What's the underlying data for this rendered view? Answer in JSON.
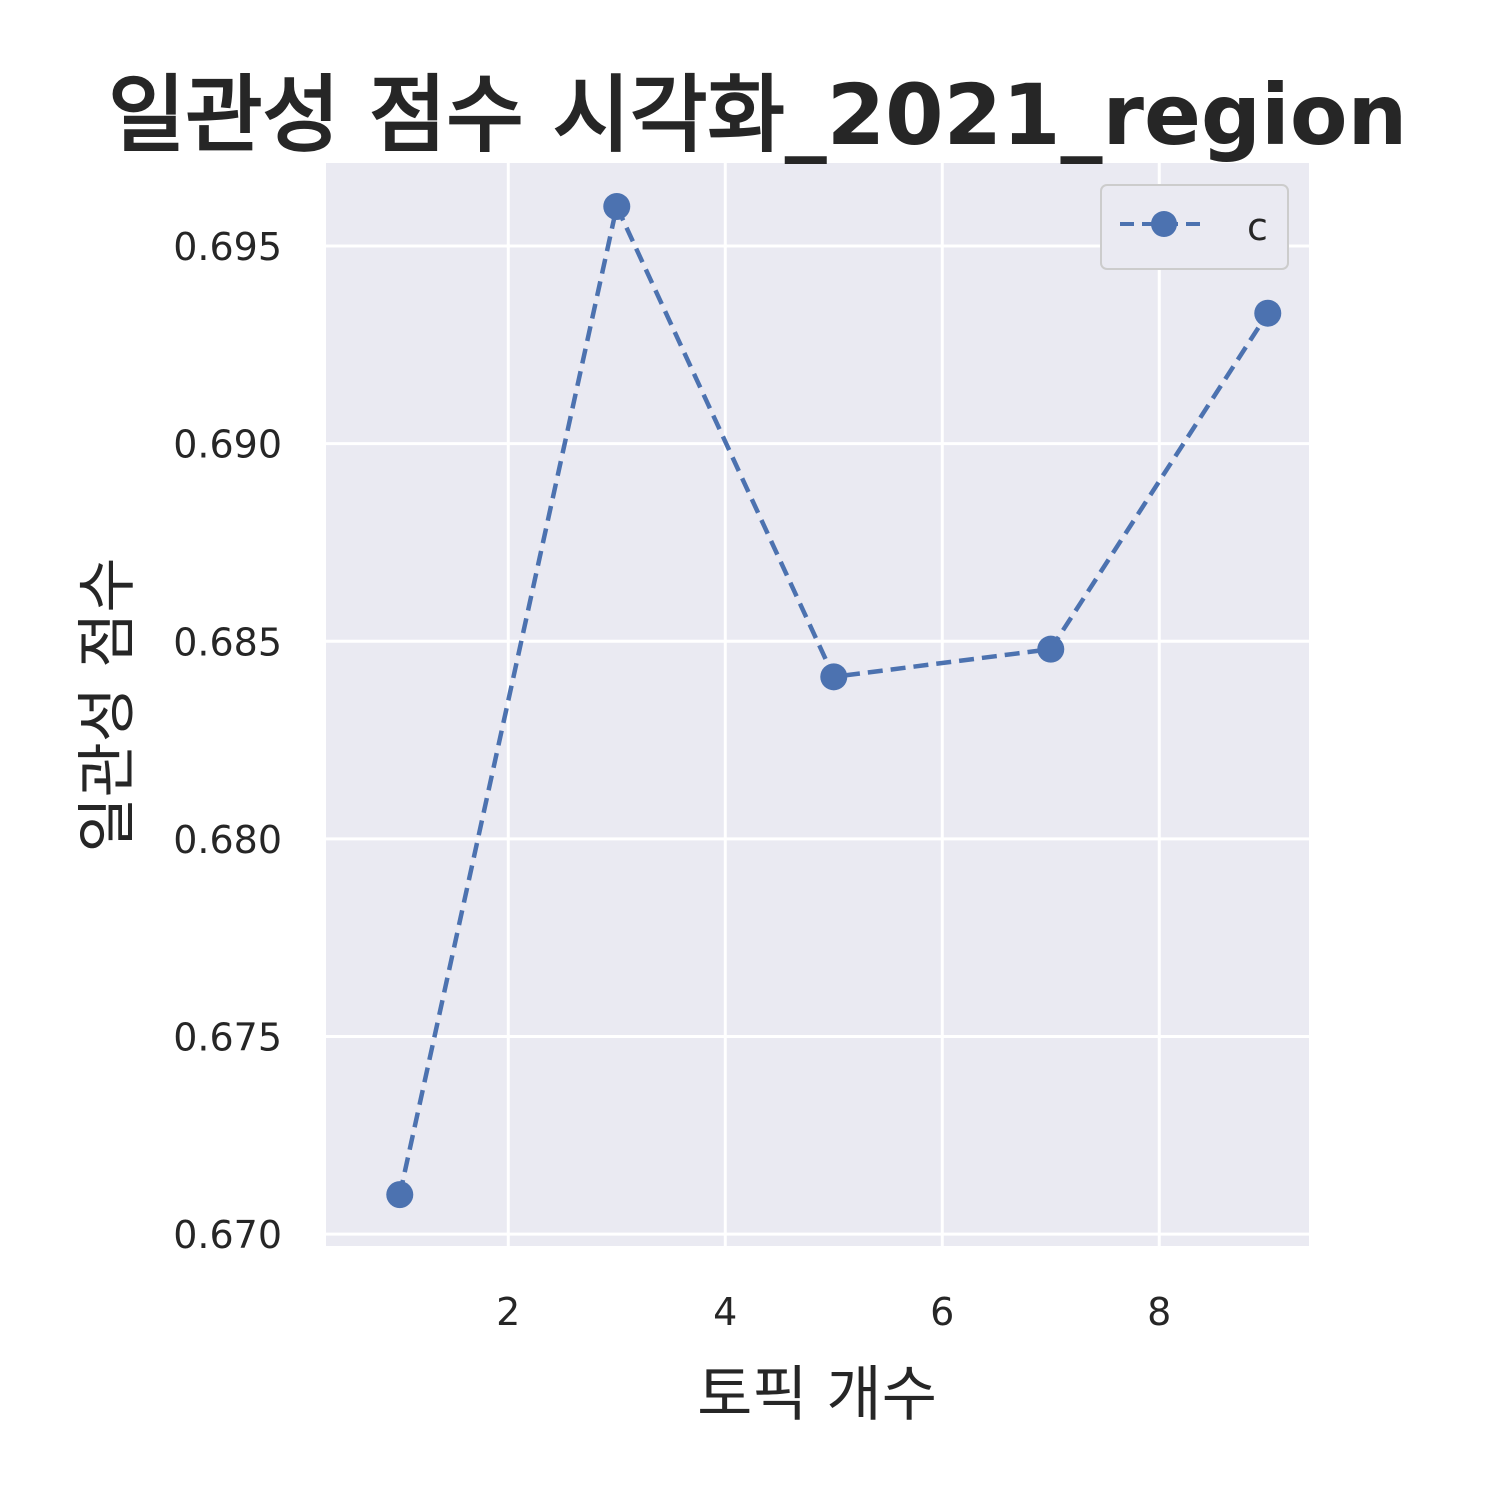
{
  "chart_data": {
    "type": "line",
    "title": "일관성 점수 시각화_2021_region",
    "xlabel": "토픽 개수",
    "ylabel": "일관성 점수",
    "x": [
      1,
      3,
      5,
      7,
      9
    ],
    "series": [
      {
        "name": "c",
        "values": [
          0.671,
          0.696,
          0.6841,
          0.6848,
          0.6933
        ],
        "color": "#4c72b0",
        "line_style": "dashed",
        "marker": "circle"
      }
    ],
    "xlim": [
      0.32,
      9.38
    ],
    "ylim": [
      0.6697,
      0.6971
    ],
    "xticks": [
      2,
      4,
      6,
      8
    ],
    "yticks": [
      0.67,
      0.675,
      0.68,
      0.685,
      0.69,
      0.695
    ],
    "yticklabels": [
      "0.670",
      "0.675",
      "0.680",
      "0.685",
      "0.690",
      "0.695"
    ],
    "grid": true,
    "legend_position": "upper-right",
    "background_color": "#eaeaf2",
    "grid_color": "#ffffff"
  }
}
